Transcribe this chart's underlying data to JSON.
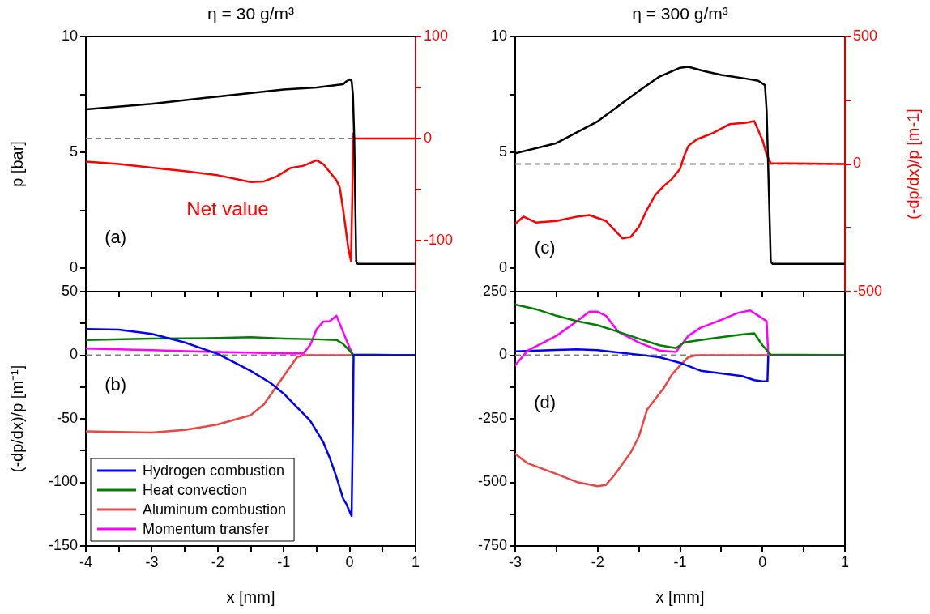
{
  "chart_data": [
    {
      "type": "line",
      "title": "η = 30 g/m³",
      "ylabel": "p [bar]",
      "xlim": [
        -4,
        1
      ],
      "xticks": [
        -4,
        {
          "value": -3.5,
          "label": null
        },
        -3,
        {
          "value": -2.5,
          "label": null
        },
        -2,
        {
          "value": -1.5,
          "label": null
        },
        -1,
        {
          "value": -0.5,
          "label": null
        },
        0,
        {
          "value": 0.5,
          "label": null
        },
        1
      ],
      "ylim": [
        -1,
        10
      ],
      "yticks": [
        0,
        {
          "value": 2.5,
          "label": null
        },
        5,
        {
          "value": 7.5,
          "label": null
        },
        10
      ],
      "y2lim": [
        -150,
        100
      ],
      "y2ticks": [
        -100,
        {
          "value": -50,
          "label": null
        },
        0,
        {
          "value": 50,
          "label": null
        },
        100
      ],
      "tick_labels": "y",
      "ref_lines": [
        {
          "axis": "y2",
          "value": 0,
          "color": "#808080",
          "line_style": "dashed"
        }
      ],
      "annotations": [
        "(a)"
      ],
      "series": [
        {
          "color": "#000000",
          "x": [
            -4,
            -3,
            -2,
            -1,
            -0.5,
            -0.1,
            -0.05,
            0,
            0.03,
            0.05,
            0.07,
            0.1,
            0.12,
            1
          ],
          "values": [
            6.86,
            7.09,
            7.41,
            7.71,
            7.8,
            7.94,
            8.06,
            8.15,
            8.08,
            7.47,
            5.6,
            0.3,
            0.2,
            0.2
          ]
        },
        {
          "name": "Net value",
          "color": "#ff0000",
          "axis": "y2",
          "x": [
            -4,
            -3.5,
            -3,
            -2.5,
            -2,
            -1.5,
            -1.3,
            -1.1,
            -0.9,
            -0.7,
            -0.5,
            -0.4,
            -0.3,
            -0.2,
            -0.15,
            -0.1,
            -0.05,
            -0.02,
            0.02,
            0.04,
            0.055,
            0.07,
            1
          ],
          "values": [
            -22.7,
            -25,
            -28.5,
            -32,
            -36,
            -42.7,
            -42,
            -37,
            -29,
            -26.7,
            -21.3,
            -25,
            -33,
            -41,
            -48,
            -69,
            -93,
            -108,
            -120,
            -60,
            5,
            0,
            0
          ]
        }
      ]
    },
    {
      "type": "line",
      "title": "η = 300 g/m³",
      "y2label": "(-dp/dx)/p [m-1]",
      "xlim": [
        -3,
        1
      ],
      "xticks": [
        -3,
        {
          "value": -2.5,
          "label": null
        },
        -2,
        {
          "value": -1.5,
          "label": null
        },
        -1,
        {
          "value": -0.5,
          "label": null
        },
        0,
        {
          "value": 0.5,
          "label": null
        },
        1
      ],
      "ylim": [
        -1,
        10
      ],
      "yticks": [
        0,
        {
          "value": 2.5,
          "label": null
        },
        5,
        {
          "value": 7.5,
          "label": null
        },
        10
      ],
      "y2lim": [
        -500,
        500
      ],
      "y2ticks": [
        -500,
        {
          "value": -250,
          "label": null
        },
        0,
        {
          "value": 250,
          "label": null
        },
        500
      ],
      "tick_labels": "y",
      "ref_lines": [
        {
          "axis": "y2",
          "value": 0,
          "color": "#808080",
          "line_style": "dashed"
        }
      ],
      "annotations": [
        "(c)"
      ],
      "series": [
        {
          "color": "#000000",
          "x": [
            -3,
            -2.5,
            -2,
            -1.5,
            -1.25,
            -1,
            -0.9,
            -0.7,
            -0.5,
            -0.2,
            -0.05,
            0.03,
            0.05,
            0.08,
            0.1,
            0.12,
            1
          ],
          "values": [
            4.96,
            5.4,
            6.34,
            7.65,
            8.27,
            8.65,
            8.69,
            8.5,
            8.34,
            8.18,
            8.09,
            7.9,
            6.8,
            3,
            0.3,
            0.2,
            0.2
          ]
        },
        {
          "color": "#ff0000",
          "axis": "y2",
          "x": [
            -3,
            -2.9,
            -2.75,
            -2.5,
            -2.25,
            -2.1,
            -1.9,
            -1.8,
            -1.7,
            -1.6,
            -1.5,
            -1.4,
            -1.3,
            -1.2,
            -1.1,
            -1,
            -0.95,
            -0.9,
            -0.8,
            -0.6,
            -0.4,
            -0.2,
            -0.1,
            0,
            0.05,
            0.1,
            1
          ],
          "values": [
            -235,
            -206,
            -229,
            -223,
            -206,
            -200,
            -223,
            -257,
            -291,
            -286,
            -246,
            -178,
            -121,
            -87,
            -59,
            -19,
            32,
            71,
            96,
            122,
            156,
            162,
            168,
            94,
            37,
            3,
            0
          ]
        }
      ]
    },
    {
      "type": "line",
      "ylabel": "(-dp/dx)/p [m⁻¹]",
      "xlabel": "x [mm]",
      "xlim": [
        -4,
        1
      ],
      "xticks": [
        -4,
        {
          "value": -3.5,
          "label": null
        },
        -3,
        {
          "value": -2.5,
          "label": null
        },
        -2,
        {
          "value": -1.5,
          "label": null
        },
        -1,
        {
          "value": -0.5,
          "label": null
        },
        0,
        {
          "value": 0.5,
          "label": null
        },
        1
      ],
      "ylim": [
        -150,
        50
      ],
      "yticks": [
        -150,
        {
          "value": -125,
          "label": null
        },
        -100,
        {
          "value": -75,
          "label": null
        },
        -50,
        {
          "value": -25,
          "label": null
        },
        0,
        {
          "value": 25,
          "label": null
        },
        50
      ],
      "legend": "bottom left",
      "ref_lines": [
        {
          "axis": "y",
          "value": 0,
          "color": "#808080",
          "line_style": "dashed"
        }
      ],
      "annotations": [
        "(b)"
      ],
      "series": [
        {
          "name": "Hydrogen combustion",
          "color": "#0000ff",
          "x": [
            -4,
            -3.5,
            -3,
            -2.5,
            -2,
            -1.5,
            -1.2,
            -1,
            -0.8,
            -0.6,
            -0.4,
            -0.3,
            -0.2,
            -0.1,
            -0.05,
            0.03,
            0.05,
            0.06,
            1
          ],
          "values": [
            20.5,
            20,
            16.7,
            10,
            1,
            -12.3,
            -21.8,
            -30.2,
            -40.8,
            -51.4,
            -68.3,
            -81,
            -95.8,
            -112.7,
            -117,
            -126.4,
            -53,
            0,
            0
          ]
        },
        {
          "name": "Heat convection",
          "color": "#008000",
          "x": [
            -4,
            -3,
            -2,
            -1.5,
            -1,
            -0.5,
            -0.2,
            -0.1,
            0,
            0.05,
            1
          ],
          "values": [
            12,
            13.1,
            13.5,
            14.2,
            13.1,
            12.5,
            12,
            8.9,
            3.6,
            0.4,
            0
          ]
        },
        {
          "name": "Aluminum combustion",
          "color": "#ef4444",
          "x": [
            -4,
            -3.5,
            -3,
            -2.5,
            -2,
            -1.5,
            -1.3,
            -1.1,
            -0.9,
            -0.8,
            -0.7,
            1
          ],
          "values": [
            -59.8,
            -60.3,
            -60.9,
            -58.8,
            -54.5,
            -47.1,
            -38.7,
            -23.9,
            -9.1,
            -1.7,
            0,
            0
          ]
        },
        {
          "name": "Momentum transfer",
          "color": "#ff00ff",
          "x": [
            -4,
            -3,
            -2,
            -1,
            -0.7,
            -0.6,
            -0.5,
            -0.4,
            -0.3,
            -0.2,
            -0.1,
            0,
            0.05,
            1
          ],
          "values": [
            5.3,
            4,
            2.5,
            1.5,
            1.5,
            7.8,
            20.5,
            26.4,
            26.8,
            31,
            18.4,
            5.7,
            0.4,
            0
          ]
        }
      ]
    },
    {
      "type": "line",
      "xlabel": "x [mm]",
      "xlim": [
        -3,
        1
      ],
      "xticks": [
        -3,
        {
          "value": -2.5,
          "label": null
        },
        -2,
        {
          "value": -1.5,
          "label": null
        },
        -1,
        {
          "value": -0.5,
          "label": null
        },
        0,
        {
          "value": 0.5,
          "label": null
        },
        1
      ],
      "ylim": [
        -750,
        250
      ],
      "yticks": [
        -750,
        {
          "value": -625,
          "label": null
        },
        -500,
        {
          "value": -375,
          "label": null
        },
        -250,
        {
          "value": -125,
          "label": null
        },
        0,
        {
          "value": 125,
          "label": null
        },
        250
      ],
      "ref_lines": [
        {
          "axis": "y",
          "value": 0,
          "color": "#808080",
          "line_style": "dashed"
        }
      ],
      "annotations": [
        "(d)"
      ],
      "series": [
        {
          "color": "#008000",
          "x": [
            -3,
            -2.75,
            -2.5,
            -2.25,
            -2,
            -1.75,
            -1.5,
            -1.25,
            -1.05,
            -0.95,
            -0.75,
            -0.5,
            -0.25,
            -0.1,
            0,
            0.1,
            1
          ],
          "values": [
            199,
            181,
            155,
            134,
            118,
            92,
            65,
            39,
            28,
            50,
            60,
            71,
            81,
            86,
            39,
            2,
            0
          ]
        },
        {
          "color": "#ff00ff",
          "x": [
            -3,
            -2.85,
            -2.5,
            -2.25,
            -2.1,
            -2,
            -1.9,
            -1.75,
            -1.5,
            -1.25,
            -1.05,
            -0.9,
            -0.75,
            -0.5,
            -0.3,
            -0.15,
            -0.05,
            0.05,
            0.07,
            1
          ],
          "values": [
            -40,
            18,
            76,
            134,
            171,
            171,
            155,
            92,
            50,
            18,
            13,
            76,
            108,
            139,
            166,
            176,
            155,
            134,
            0,
            0
          ]
        },
        {
          "color": "#0000ff",
          "x": [
            -3,
            -2.5,
            -2.25,
            -2,
            -1.5,
            -1.25,
            -1,
            -0.75,
            -0.5,
            -0.25,
            -0.1,
            0,
            0.06,
            0.07,
            1
          ],
          "values": [
            15,
            21,
            23,
            20,
            2,
            -8,
            -30,
            -61,
            -72,
            -82,
            -98,
            -103,
            -103,
            0,
            0
          ]
        },
        {
          "color": "#ef4444",
          "x": [
            -3,
            -2.85,
            -2.5,
            -2.25,
            -2,
            -1.9,
            -1.8,
            -1.6,
            -1.5,
            -1.4,
            -1.3,
            -1.2,
            -1.1,
            -1,
            -0.9,
            -0.8,
            1
          ],
          "values": [
            -388,
            -425,
            -467,
            -499,
            -515,
            -510,
            -473,
            -383,
            -320,
            -214,
            -172,
            -130,
            -77,
            -40,
            -8,
            0,
            0
          ]
        }
      ]
    }
  ]
}
